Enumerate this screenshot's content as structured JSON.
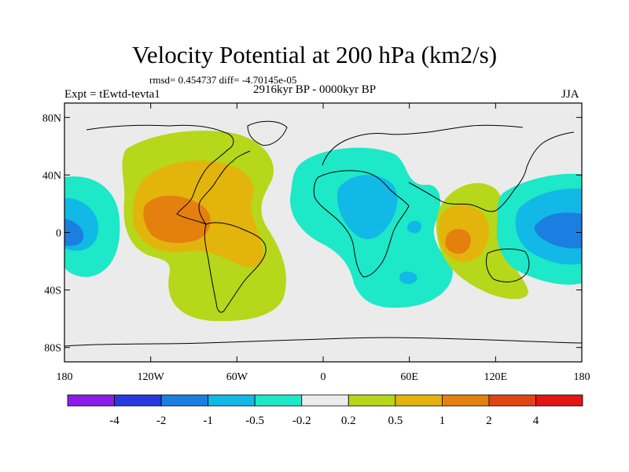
{
  "title": "Velocity Potential at 200 hPa (km2/s)",
  "subtitle": "rmsd= 0.454737 diff= -4.70145e-05",
  "left_label": "Expt = tEwtd-tevta1",
  "center_label": "2916kyr BP - 0000kyr BP",
  "right_label": "JJA",
  "map": {
    "lon_range": [
      -180,
      180
    ],
    "lat_range": [
      -90,
      90
    ],
    "projection": "cylindrical equidistant",
    "lat_ticks": [
      {
        "value": 80,
        "label": "80N"
      },
      {
        "value": 40,
        "label": "40N"
      },
      {
        "value": 0,
        "label": "0"
      },
      {
        "value": -40,
        "label": "40S"
      },
      {
        "value": -80,
        "label": "80S"
      }
    ],
    "lon_ticks": [
      {
        "value": -180,
        "label": "180"
      },
      {
        "value": -120,
        "label": "120W"
      },
      {
        "value": -60,
        "label": "60W"
      },
      {
        "value": 0,
        "label": "0"
      },
      {
        "value": 60,
        "label": "60E"
      },
      {
        "value": 120,
        "label": "120E"
      },
      {
        "value": 180,
        "label": "180"
      }
    ]
  },
  "colorbar": {
    "colors": [
      "#8a1ee8",
      "#2a38e0",
      "#1a7fe0",
      "#12b8e6",
      "#1de8c8",
      "#ebebeb",
      "#b6d71a",
      "#e3b40c",
      "#e4800e",
      "#e04614",
      "#e31414"
    ],
    "labels": [
      "-4",
      "-2",
      "-1",
      "-0.5",
      "-0.2",
      "0.2",
      "0.5",
      "1",
      "2",
      "4"
    ]
  },
  "colors": {
    "background_field": "#ebebeb",
    "negative_1": "#1de8c8",
    "negative_2": "#12b8e6",
    "negative_3": "#1a7fe0",
    "positive_1": "#b6d71a",
    "positive_2": "#e3b40c",
    "positive_3": "#e4800e"
  }
}
